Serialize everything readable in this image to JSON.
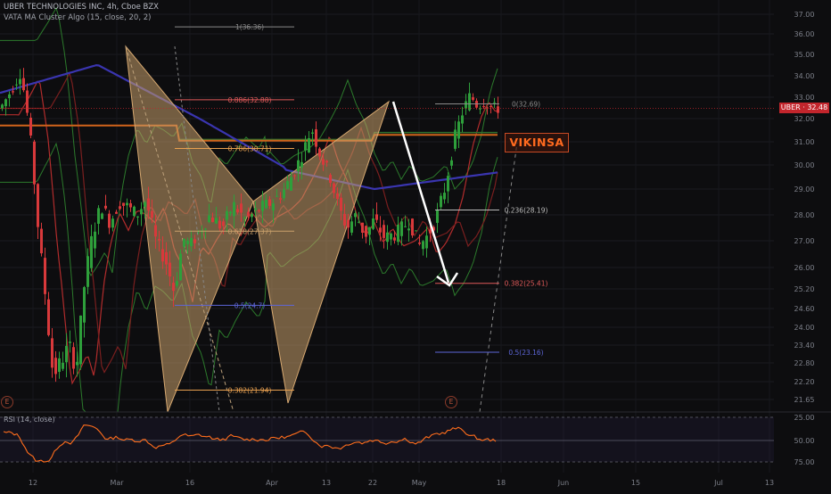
{
  "header": {
    "symbol_line": "UBER TECHNOLOGIES INC, 4h, Cboe BZX",
    "indicator_line": "VATA MA Cluster Algo (15, close, 20, 2)"
  },
  "rsi": {
    "label": "RSI (14, close)",
    "levels": [
      "75.00",
      "50.00",
      "25.00"
    ]
  },
  "watermark": "VIKINSA",
  "price_tag": "UBER · 32.48",
  "earnings_marker": "E",
  "colors": {
    "up": "#2e9f3b",
    "down": "#d8393b",
    "bat": "#c9a06b",
    "rsi": "#ff6d1c",
    "price": "#c2252c"
  },
  "chart_data": {
    "type": "candlestick",
    "y_ticks": [
      "37.00",
      "36.00",
      "35.00",
      "34.00",
      "33.00",
      "32.00",
      "31.00",
      "30.00",
      "29.00",
      "28.00",
      "27.00",
      "26.00",
      "25.20",
      "24.60",
      "24.00",
      "23.40",
      "22.80",
      "22.20",
      "21.65"
    ],
    "x_ticks": [
      "12",
      "Mar",
      "16",
      "Apr",
      "13",
      "22",
      "May",
      "18",
      "Jun",
      "15",
      "Jul",
      "13"
    ],
    "last_price": "32.48",
    "fib_levels": [
      {
        "label": "1(36.36)",
        "value": 36.36,
        "color": "#8a8a8a"
      },
      {
        "label": "0.886(32.88)",
        "value": 32.88,
        "color": "#e05a5a"
      },
      {
        "label": "0.786(30.71)",
        "value": 30.71,
        "color": "#e8a050"
      },
      {
        "label": "0.618(27.37)",
        "value": 27.37,
        "color": "#c9a06b"
      },
      {
        "label": "0.5(24.7)",
        "value": 24.7,
        "color": "#5d66d8"
      },
      {
        "label": "0.382(21.94)",
        "value": 21.94,
        "color": "#e8a050"
      },
      {
        "label": "0(32.69)",
        "value": 32.69,
        "color": "#8a8a8a"
      },
      {
        "label": "0.236(28.19)",
        "value": 28.19,
        "color": "#bbbbbb"
      },
      {
        "label": "0.382(25.41)",
        "value": 25.41,
        "color": "#e05a5a"
      },
      {
        "label": "0.5(23.16)",
        "value": 23.16,
        "color": "#5d66d8"
      }
    ]
  }
}
